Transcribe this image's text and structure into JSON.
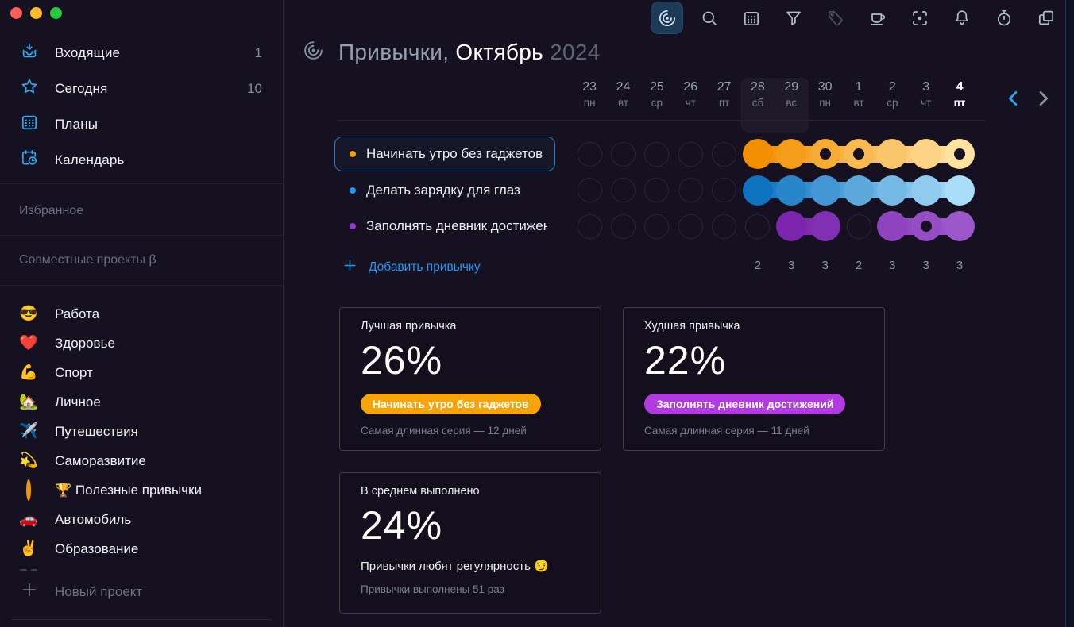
{
  "window": {
    "controls": [
      "#ff5e57",
      "#fdbc2e",
      "#28c83f"
    ]
  },
  "toolbar": {
    "icons": [
      {
        "name": "habits",
        "active": true,
        "dim": false
      },
      {
        "name": "search",
        "active": false,
        "dim": false
      },
      {
        "name": "calendar",
        "active": false,
        "dim": false
      },
      {
        "name": "filter",
        "active": false,
        "dim": false
      },
      {
        "name": "tag",
        "active": false,
        "dim": true
      },
      {
        "name": "cup",
        "active": false,
        "dim": false
      },
      {
        "name": "focus",
        "active": false,
        "dim": false
      },
      {
        "name": "bell",
        "active": false,
        "dim": false
      },
      {
        "name": "timer",
        "active": false,
        "dim": false
      },
      {
        "name": "copy",
        "active": false,
        "dim": false
      }
    ]
  },
  "header": {
    "prefix": "Привычки,",
    "month": "Октябрь",
    "year": "2024"
  },
  "sidebar": {
    "items": [
      {
        "icon": "inbox",
        "label": "Входящие",
        "count": "1"
      },
      {
        "icon": "star",
        "label": "Сегодня",
        "count": "10"
      },
      {
        "icon": "plans",
        "label": "Планы",
        "count": ""
      },
      {
        "icon": "calclock",
        "label": "Календарь",
        "count": ""
      }
    ],
    "favorites_label": "Избранное",
    "shared_label": "Совместные проекты β",
    "projects": [
      {
        "emoji": "😎",
        "label": "Работа"
      },
      {
        "emoji": "❤️",
        "label": "Здоровье"
      },
      {
        "emoji": "💪",
        "label": "Спорт"
      },
      {
        "emoji": "🏡",
        "label": "Личное"
      },
      {
        "emoji": "✈️",
        "label": "Путешествия"
      },
      {
        "emoji": "💫",
        "label": "Саморазвитие"
      },
      {
        "emoji": "",
        "ring": true,
        "ring_color": "#f09a00",
        "label": "🏆 Полезные привычки"
      },
      {
        "emoji": "🚗",
        "label": "Автомобиль"
      },
      {
        "emoji": "✌️",
        "label": "Образование"
      }
    ],
    "new_project_label": "Новый проект"
  },
  "chart_data": {
    "type": "habit-tracker",
    "title": "Привычки, Октябрь 2024",
    "days": [
      {
        "num": "23",
        "name": "пн"
      },
      {
        "num": "24",
        "name": "вт"
      },
      {
        "num": "25",
        "name": "ср"
      },
      {
        "num": "26",
        "name": "чт"
      },
      {
        "num": "27",
        "name": "пт"
      },
      {
        "num": "28",
        "name": "сб",
        "weekend": true
      },
      {
        "num": "29",
        "name": "вс",
        "weekend": true
      },
      {
        "num": "30",
        "name": "пн"
      },
      {
        "num": "1",
        "name": "вт"
      },
      {
        "num": "2",
        "name": "ср"
      },
      {
        "num": "3",
        "name": "чт"
      },
      {
        "num": "4",
        "name": "пт",
        "current": true
      }
    ],
    "habits": [
      {
        "label": "Начинать утро без гаджетов",
        "dot_color": "#f2a20d",
        "selected": true,
        "gradient": [
          "#f18f00",
          "#ffe2a0"
        ],
        "cells": [
          "none",
          "none",
          "none",
          "none",
          "none",
          "full",
          "full",
          "partial",
          "partial",
          "full",
          "full",
          "partial"
        ]
      },
      {
        "label": "Делать зарядку для глаз",
        "dot_color": "#2196f3",
        "selected": false,
        "gradient": [
          "#0d73c1",
          "#a9ddf8"
        ],
        "cells": [
          "none",
          "none",
          "none",
          "none",
          "none",
          "full",
          "full",
          "full",
          "full",
          "full",
          "full",
          "full"
        ]
      },
      {
        "label": "Заполнять дневник достижений",
        "dot_color": "#9b34d4",
        "selected": false,
        "gradient": [
          "#7b26ad",
          "#9c57ca"
        ],
        "cells": [
          "none",
          "none",
          "none",
          "none",
          "none",
          "none",
          "full",
          "full",
          "none",
          "full",
          "partial",
          "full"
        ]
      }
    ],
    "day_totals": [
      "",
      "",
      "",
      "",
      "",
      "2",
      "3",
      "3",
      "2",
      "3",
      "3",
      "3"
    ],
    "add_habit_label": "Добавить привычку"
  },
  "cards": [
    {
      "title": "Лучшая привычка",
      "percent": "26%",
      "badge": "Начинать утро без гаджетов",
      "badge_color": "#f7a40a",
      "footer": "Самая длинная серия — 12 дней"
    },
    {
      "title": "Худшая привычка",
      "percent": "22%",
      "badge": "Заполнять дневник достижений",
      "badge_color": "#b13be0",
      "footer": "Самая длинная серия — 11 дней"
    },
    {
      "title": "В среднем выполнено",
      "percent": "24%",
      "message": "Привычки любят регулярность 😏",
      "footer": "Привычки выполнены 51 раз"
    }
  ]
}
